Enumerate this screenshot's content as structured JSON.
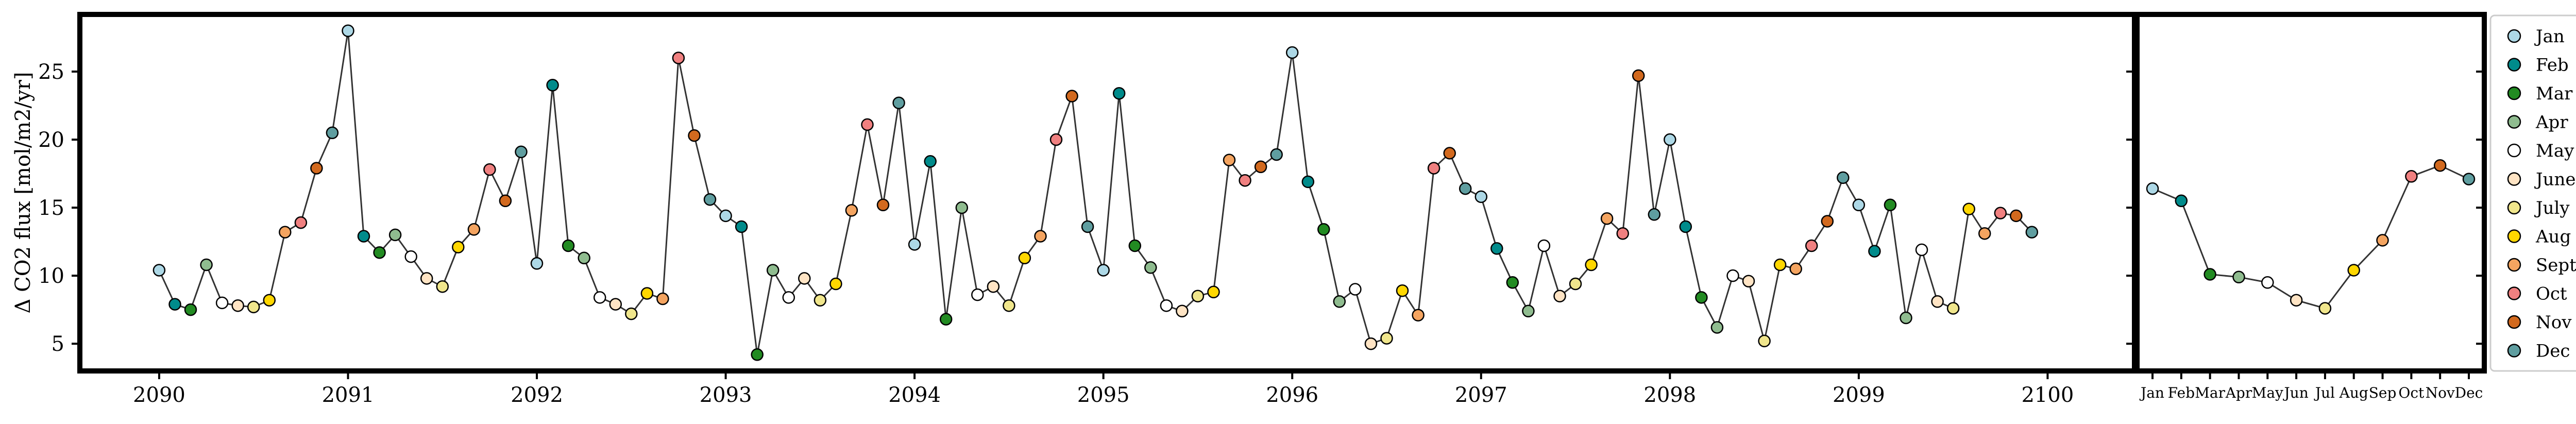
{
  "chart_data": [
    {
      "type": "line",
      "panel": "monthly-timeseries",
      "title": "",
      "xlabel": "",
      "ylabel": "Δ CO2 flux [mol/m2/yr]",
      "xlim": [
        2089.58,
        2100.46
      ],
      "ylim": [
        3.0,
        29.2
      ],
      "x_ticks": [
        2090,
        2091,
        2092,
        2093,
        2094,
        2095,
        2096,
        2097,
        2098,
        2099,
        2100
      ],
      "x_tick_labels": [
        "2090",
        "2091",
        "2092",
        "2093",
        "2094",
        "2095",
        "2096",
        "2097",
        "2098",
        "2099",
        "2100"
      ],
      "y_ticks": [
        5,
        10,
        15,
        20,
        25
      ],
      "y_tick_labels": [
        "5",
        "10",
        "15",
        "20",
        "25"
      ],
      "grid": false,
      "series": [
        {
          "start_year": 2090,
          "values": [
            10.4,
            7.9,
            7.5,
            10.8,
            8.0,
            7.8,
            7.7,
            8.2,
            13.2,
            13.9,
            17.9,
            20.5,
            28.0,
            12.9,
            11.7,
            13.0,
            11.4,
            9.8,
            9.2,
            12.1,
            13.4,
            17.8,
            15.5,
            19.1,
            10.9,
            24.0,
            12.2,
            11.3,
            8.4,
            7.9,
            7.2,
            8.7,
            8.3,
            26.0,
            20.3,
            15.6,
            14.4,
            13.6,
            4.2,
            10.4,
            8.4,
            9.8,
            8.2,
            9.4,
            14.8,
            21.1,
            15.2,
            22.7,
            12.3,
            18.4,
            6.8,
            15.0,
            8.6,
            9.2,
            7.8,
            11.3,
            12.9,
            20.0,
            23.2,
            13.6,
            10.4,
            23.4,
            12.2,
            10.6,
            7.8,
            7.4,
            8.5,
            8.8,
            18.5,
            17.0,
            18.0,
            18.9,
            26.4,
            16.9,
            13.4,
            8.1,
            9.0,
            5.0,
            5.4,
            8.9,
            7.1,
            17.9,
            19.0,
            16.4,
            15.8,
            12.0,
            9.5,
            7.4,
            12.2,
            8.5,
            9.4,
            10.8,
            14.2,
            13.1,
            24.7,
            14.5,
            20.0,
            13.6,
            8.4,
            6.2,
            10.0,
            9.6,
            5.2,
            10.8,
            10.5,
            12.2,
            14.0,
            17.2,
            15.2,
            11.8,
            15.2,
            6.9,
            11.9,
            8.1,
            7.6,
            14.9,
            13.1,
            14.6,
            14.4,
            13.2
          ]
        }
      ]
    },
    {
      "type": "line",
      "panel": "monthly-climatology",
      "title": "",
      "categories": [
        "Jan",
        "Feb",
        "Mar",
        "Apr",
        "May",
        "Jun",
        "Jul",
        "Aug",
        "Sep",
        "Oct",
        "Nov",
        "Dec"
      ],
      "x_tick_labels": [
        "Jan",
        "Feb",
        "Mar",
        "Apr",
        "May",
        "Jun",
        "Jul",
        "Aug",
        "Sep",
        "Oct",
        "Nov",
        "Dec"
      ],
      "ylim": [
        3.0,
        29.2
      ],
      "series": [
        {
          "values": [
            16.4,
            15.5,
            10.1,
            9.9,
            9.5,
            8.2,
            7.6,
            10.4,
            12.6,
            17.3,
            18.1,
            17.1
          ]
        }
      ]
    }
  ],
  "legend": {
    "position": "right",
    "entries": [
      "Jan",
      "Feb",
      "Mar",
      "Apr",
      "May",
      "June",
      "July",
      "Aug",
      "Sept",
      "Oct",
      "Nov",
      "Dec"
    ]
  },
  "colors": {
    "months": [
      "#ADD8E6",
      "#008B8B",
      "#228B22",
      "#8FBC8F",
      "#FFFFFF",
      "#FFE4C4",
      "#F0E68C",
      "#FFD700",
      "#F4A460",
      "#F08080",
      "#D2691E",
      "#5F9EA0"
    ],
    "line": "#333333",
    "frame": "#000000"
  }
}
